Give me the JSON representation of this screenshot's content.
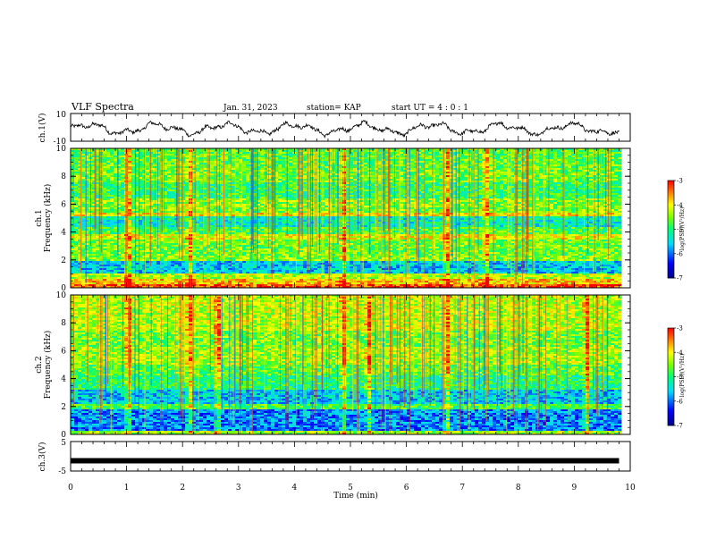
{
  "header": {
    "title": "VLF Spectra",
    "date": "Jan. 31, 2023",
    "station": "station= KAP",
    "start": "start  UT =   4 : 0  : 1"
  },
  "chart_data": {
    "type": "heatmap",
    "title": "VLF Spectra",
    "xlabel": "Time (min)",
    "xlim": [
      0,
      10
    ],
    "x_ticks": [
      "0",
      "1",
      "2",
      "3",
      "4",
      "5",
      "6",
      "7",
      "8",
      "9",
      "10"
    ],
    "data_end_min": 9.8,
    "panels": [
      {
        "id": "ch1_waveform",
        "type": "line",
        "ylabel": "ch.1(V)",
        "ylim": [
          -10,
          10
        ],
        "y_ticks": [
          "10",
          "-10"
        ],
        "series_color": "#000000"
      },
      {
        "id": "ch1_spectrogram",
        "type": "heatmap",
        "ylabel_top": "ch.1",
        "ylabel": "Frequency (kHz)",
        "ylim": [
          0,
          10
        ],
        "y_ticks": [
          "0",
          "2",
          "4",
          "6",
          "8",
          "10"
        ],
        "colorbar": {
          "label": "log(PSD)(V²/Hz)",
          "range": [
            -7,
            -3
          ],
          "ticks": [
            "-3",
            "-4",
            "-5",
            "-6",
            "-7"
          ]
        },
        "bands": [
          {
            "f": [
              0,
              0.3
            ],
            "level": -3.3
          },
          {
            "f": [
              0.3,
              0.6
            ],
            "level": -3.8
          },
          {
            "f": [
              0.6,
              1.0
            ],
            "level": -4.3
          },
          {
            "f": [
              1.0,
              1.9
            ],
            "level": -5.6
          },
          {
            "f": [
              1.9,
              2.3
            ],
            "level": -4.5
          },
          {
            "f": [
              2.3,
              3.4
            ],
            "level": -4.6
          },
          {
            "f": [
              3.4,
              3.8
            ],
            "level": -4.1
          },
          {
            "f": [
              3.8,
              4.4
            ],
            "level": -4.8
          },
          {
            "f": [
              4.4,
              5.1
            ],
            "level": -5.3
          },
          {
            "f": [
              5.1,
              5.4
            ],
            "level": -4.0
          },
          {
            "f": [
              5.4,
              6.4
            ],
            "level": -4.5
          },
          {
            "f": [
              6.4,
              7.6
            ],
            "level": -4.9
          },
          {
            "f": [
              7.6,
              8.6
            ],
            "level": -4.6
          },
          {
            "f": [
              8.6,
              10.0
            ],
            "level": -4.7
          }
        ],
        "bursts_min": [
          1.0,
          2.1,
          4.85,
          6.7,
          7.4
        ]
      },
      {
        "id": "ch2_spectrogram",
        "type": "heatmap",
        "ylabel_top": "ch.2",
        "ylabel": "Frequency (kHz)",
        "ylim": [
          0,
          10
        ],
        "y_ticks": [
          "0",
          "2",
          "4",
          "6",
          "8",
          "10"
        ],
        "colorbar": {
          "label": "log(PSD)(V²/Hz)",
          "range": [
            -7,
            -3
          ],
          "ticks": [
            "-3",
            "-4",
            "-5",
            "-6",
            "-7"
          ]
        },
        "bands": [
          {
            "f": [
              0,
              0.3
            ],
            "level": -4.4
          },
          {
            "f": [
              0.3,
              1.8
            ],
            "level": -5.9
          },
          {
            "f": [
              1.8,
              2.2
            ],
            "level": -4.8
          },
          {
            "f": [
              2.2,
              3.2
            ],
            "level": -5.6
          },
          {
            "f": [
              3.2,
              4.2
            ],
            "level": -5.0
          },
          {
            "f": [
              4.2,
              5.0
            ],
            "level": -4.7
          },
          {
            "f": [
              5.0,
              6.3
            ],
            "level": -4.4
          },
          {
            "f": [
              6.3,
              7.5
            ],
            "level": -4.6
          },
          {
            "f": [
              7.5,
              10.0
            ],
            "level": -4.3
          }
        ],
        "bursts_min": [
          1.0,
          2.1,
          2.6,
          4.85,
          5.3,
          6.7,
          9.2
        ]
      },
      {
        "id": "ch3_waveform",
        "type": "line",
        "ylabel": "ch.3(V)",
        "ylim": [
          -5,
          5
        ],
        "y_ticks": [
          "5",
          "-5"
        ],
        "constant_level": -1.5
      }
    ]
  }
}
